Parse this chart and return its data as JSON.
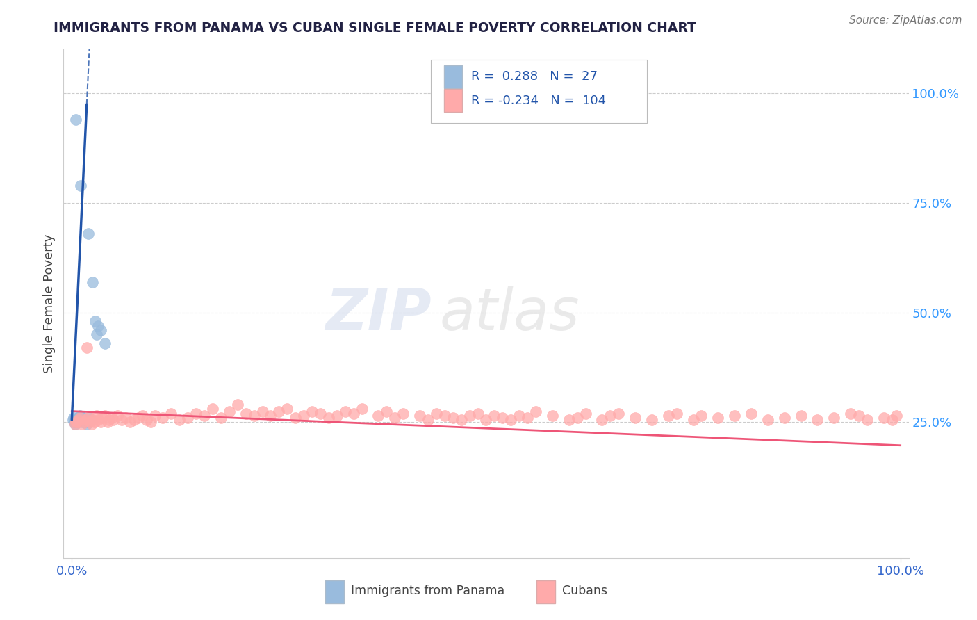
{
  "title": "IMMIGRANTS FROM PANAMA VS CUBAN SINGLE FEMALE POVERTY CORRELATION CHART",
  "source": "Source: ZipAtlas.com",
  "ylabel": "Single Female Poverty",
  "legend_labels": [
    "Immigrants from Panama",
    "Cubans"
  ],
  "r_panama": 0.288,
  "n_panama": 27,
  "r_cubans": -0.234,
  "n_cubans": 104,
  "ytick_labels": [
    "100.0%",
    "75.0%",
    "50.0%",
    "25.0%"
  ],
  "ytick_values": [
    1.0,
    0.75,
    0.5,
    0.25
  ],
  "blue_scatter_color": "#99BBDD",
  "pink_scatter_color": "#FFAAAA",
  "blue_line_color": "#2255AA",
  "pink_line_color": "#EE5577",
  "title_color": "#222244",
  "axis_label_color": "#3366CC",
  "right_axis_color": "#3399FF",
  "grid_color": "#CCCCCC",
  "panama_x": [
    0.001,
    0.002,
    0.003,
    0.004,
    0.005,
    0.006,
    0.007,
    0.008,
    0.009,
    0.01,
    0.011,
    0.012,
    0.013,
    0.014,
    0.015,
    0.016,
    0.017,
    0.018,
    0.02,
    0.021,
    0.022,
    0.025,
    0.028,
    0.03,
    0.032,
    0.035,
    0.04
  ],
  "panama_y": [
    0.255,
    0.26,
    0.25,
    0.245,
    0.94,
    0.255,
    0.26,
    0.25,
    0.255,
    0.265,
    0.79,
    0.25,
    0.255,
    0.26,
    0.25,
    0.255,
    0.25,
    0.245,
    0.68,
    0.26,
    0.255,
    0.57,
    0.48,
    0.45,
    0.47,
    0.46,
    0.43
  ],
  "cuban_x": [
    0.005,
    0.008,
    0.01,
    0.012,
    0.015,
    0.017,
    0.018,
    0.02,
    0.022,
    0.024,
    0.025,
    0.027,
    0.03,
    0.032,
    0.035,
    0.037,
    0.04,
    0.043,
    0.045,
    0.048,
    0.05,
    0.055,
    0.06,
    0.065,
    0.07,
    0.075,
    0.08,
    0.085,
    0.09,
    0.095,
    0.1,
    0.11,
    0.12,
    0.13,
    0.14,
    0.15,
    0.16,
    0.17,
    0.18,
    0.19,
    0.2,
    0.21,
    0.22,
    0.23,
    0.24,
    0.25,
    0.26,
    0.27,
    0.28,
    0.29,
    0.3,
    0.31,
    0.32,
    0.33,
    0.34,
    0.35,
    0.37,
    0.38,
    0.39,
    0.4,
    0.42,
    0.43,
    0.44,
    0.45,
    0.46,
    0.47,
    0.48,
    0.49,
    0.5,
    0.51,
    0.52,
    0.53,
    0.54,
    0.55,
    0.56,
    0.58,
    0.6,
    0.61,
    0.62,
    0.64,
    0.65,
    0.66,
    0.68,
    0.7,
    0.72,
    0.73,
    0.75,
    0.76,
    0.78,
    0.8,
    0.82,
    0.84,
    0.86,
    0.88,
    0.9,
    0.92,
    0.94,
    0.95,
    0.96,
    0.98,
    0.99,
    0.995,
    0.004,
    0.006
  ],
  "cuban_y": [
    0.25,
    0.255,
    0.26,
    0.245,
    0.25,
    0.255,
    0.42,
    0.26,
    0.25,
    0.245,
    0.255,
    0.25,
    0.265,
    0.255,
    0.25,
    0.26,
    0.265,
    0.25,
    0.255,
    0.26,
    0.255,
    0.265,
    0.255,
    0.26,
    0.25,
    0.255,
    0.26,
    0.265,
    0.255,
    0.25,
    0.265,
    0.26,
    0.27,
    0.255,
    0.26,
    0.27,
    0.265,
    0.28,
    0.26,
    0.275,
    0.29,
    0.27,
    0.265,
    0.275,
    0.265,
    0.275,
    0.28,
    0.26,
    0.265,
    0.275,
    0.27,
    0.26,
    0.265,
    0.275,
    0.27,
    0.28,
    0.265,
    0.275,
    0.26,
    0.27,
    0.265,
    0.255,
    0.27,
    0.265,
    0.26,
    0.255,
    0.265,
    0.27,
    0.255,
    0.265,
    0.26,
    0.255,
    0.265,
    0.26,
    0.275,
    0.265,
    0.255,
    0.26,
    0.27,
    0.255,
    0.265,
    0.27,
    0.26,
    0.255,
    0.265,
    0.27,
    0.255,
    0.265,
    0.26,
    0.265,
    0.27,
    0.255,
    0.26,
    0.265,
    0.255,
    0.26,
    0.27,
    0.265,
    0.255,
    0.26,
    0.255,
    0.265,
    0.245,
    0.25
  ]
}
